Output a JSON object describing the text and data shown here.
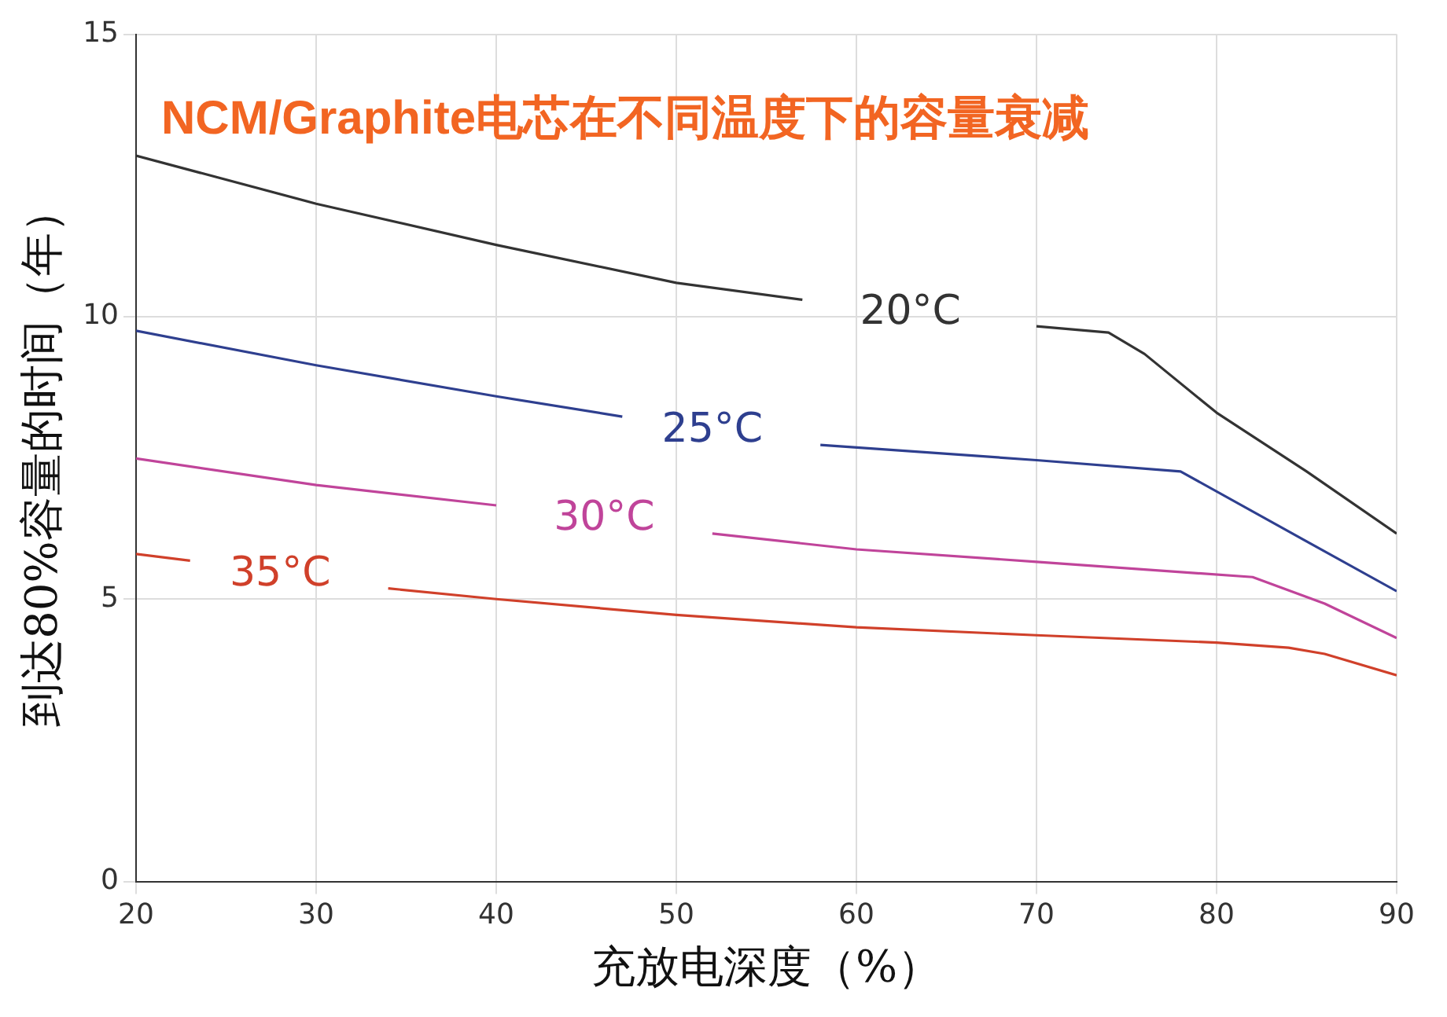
{
  "chart_data": {
    "type": "line",
    "title": "NCM/Graphite电芯在不同温度下的容量衰减",
    "xlabel": "充放电深度（%）",
    "ylabel": "到达80%容量的时间（年）",
    "xlim": [
      20,
      90
    ],
    "xticks": [
      20,
      30,
      40,
      50,
      60,
      70,
      80,
      90
    ],
    "ylim": [
      0,
      15
    ],
    "yticks": [
      0,
      5,
      10,
      15
    ],
    "grid": true,
    "legend": false,
    "marker": "none",
    "line_style": "solid",
    "series": [
      {
        "name": "20°C",
        "color": "#333333",
        "x": [
          20,
          30,
          40,
          50,
          57,
          63,
          70,
          74,
          76,
          80,
          85,
          90
        ],
        "values": [
          12.85,
          12.0,
          11.27,
          10.6,
          10.3,
          null,
          9.83,
          9.72,
          9.34,
          8.3,
          7.26,
          6.16
        ]
      },
      {
        "name": "25°C",
        "color": "#2e3f8f",
        "x": [
          20,
          30,
          40,
          47,
          52,
          58,
          70,
          78,
          85,
          90
        ],
        "values": [
          9.75,
          9.14,
          8.59,
          8.23,
          null,
          7.73,
          7.46,
          7.26,
          6.02,
          5.14
        ]
      },
      {
        "name": "30°C",
        "color": "#c0449a",
        "x": [
          20,
          30,
          40,
          46,
          52,
          60,
          70,
          82,
          86,
          90
        ],
        "values": [
          7.49,
          7.02,
          6.66,
          null,
          6.16,
          5.88,
          5.66,
          5.39,
          4.92,
          4.31
        ]
      },
      {
        "name": "35°C",
        "color": "#d0402a",
        "x": [
          20,
          23,
          28,
          34,
          40,
          50,
          60,
          70,
          80,
          84,
          86,
          90
        ],
        "values": [
          5.8,
          5.68,
          null,
          5.19,
          5.0,
          4.72,
          4.5,
          4.36,
          4.23,
          4.14,
          4.03,
          3.65
        ]
      }
    ]
  }
}
